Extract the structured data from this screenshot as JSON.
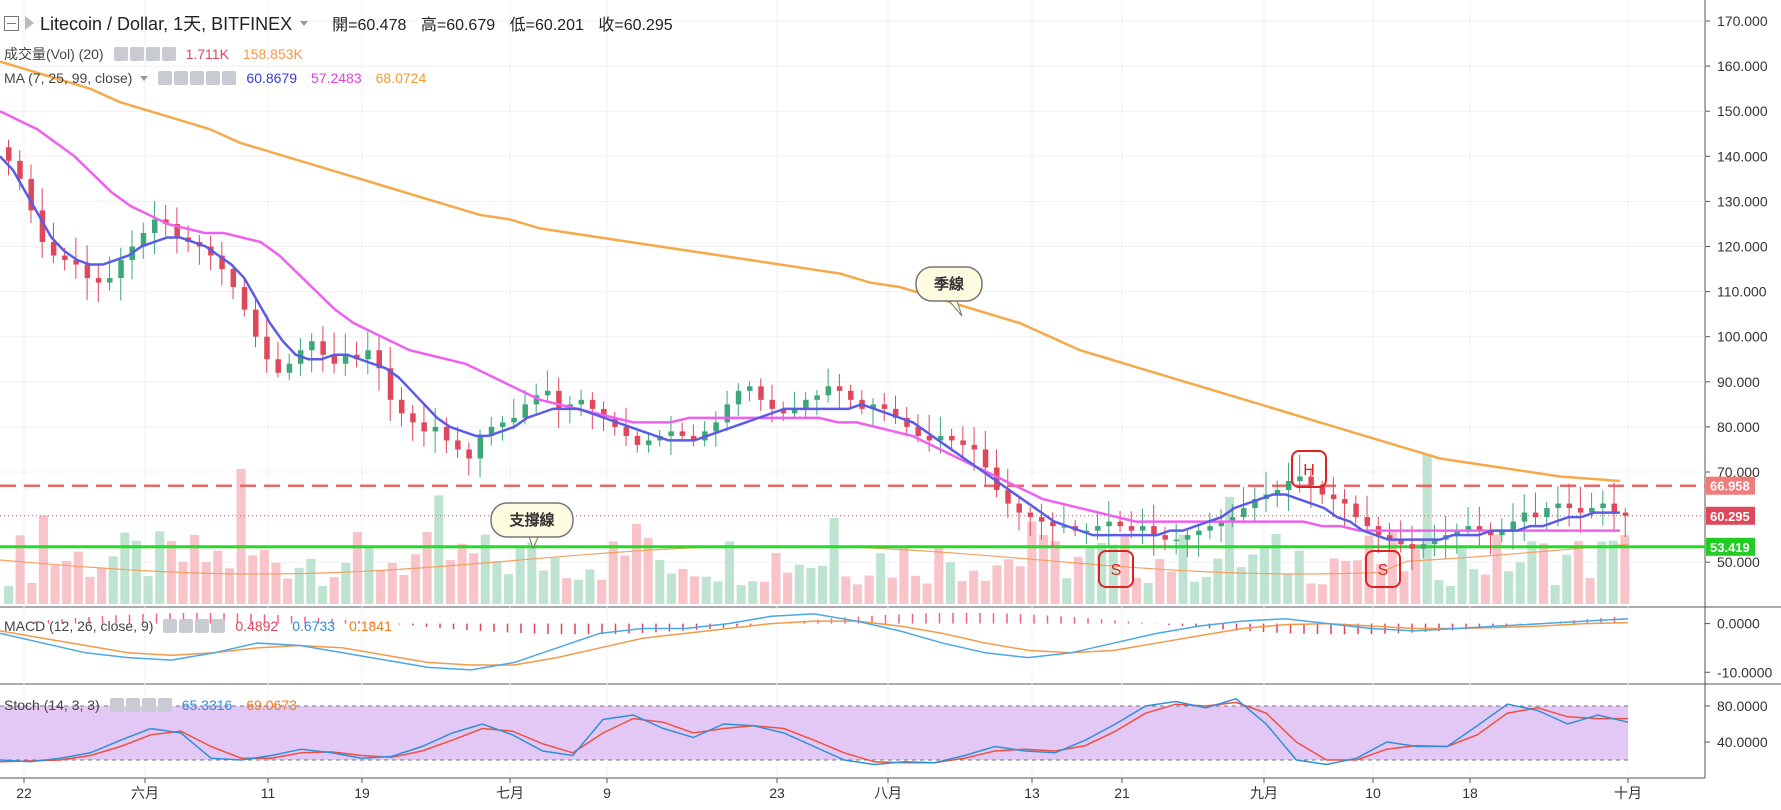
{
  "header": {
    "symbol": "Litecoin / Dollar, 1天, BITFINEX",
    "ohlc": {
      "open": "開=60.478",
      "high": "高=60.679",
      "low": "低=60.201",
      "close": "收=60.295"
    }
  },
  "legends": {
    "volume": {
      "name": "成交量(Vol) (20)",
      "v1": "1.711K",
      "v2": "158.853K"
    },
    "ma": {
      "name": "MA (7, 25, 99, close)",
      "v1": "60.8679",
      "v2": "57.2483",
      "v3": "68.0724"
    },
    "macd": {
      "name": "MACD (12, 26, close, 9)",
      "v1": "0.4892",
      "v2": "0.6733",
      "v3": "0.1841"
    },
    "stoch": {
      "name": "Stoch (14, 3, 3)",
      "v1": "65.3316",
      "v2": "69.0673"
    }
  },
  "price_axis": {
    "ticks": [
      "170.000",
      "160.000",
      "150.000",
      "140.000",
      "130.000",
      "120.000",
      "110.000",
      "100.000",
      "90.000",
      "80.000",
      "70.000",
      "50.000"
    ],
    "tags": {
      "resistance": "66.958",
      "last": "60.295",
      "support": "53.419"
    }
  },
  "macd_axis": {
    "ticks": [
      "0.0000",
      "-10.0000"
    ]
  },
  "stoch_axis": {
    "ticks": [
      "80.0000",
      "40.0000"
    ]
  },
  "time_axis": {
    "labels": [
      "22",
      "六月",
      "11",
      "19",
      "七月",
      "9",
      "23",
      "八月",
      "13",
      "21",
      "九月",
      "10",
      "18",
      "十月"
    ]
  },
  "annotations": {
    "quarter_line": "季線",
    "support_line": "支撐線",
    "head": "H",
    "shoulder_left": "S",
    "shoulder_right": "S"
  },
  "colors": {
    "up": "#3ea77a",
    "down": "#e0475a",
    "ma7": "#5b5ce6",
    "ma25": "#f060f0",
    "ma99": "#f7a94a",
    "support": "#22dd22",
    "resistance": "#ee6666",
    "stoch_fill": "#e3c8f5",
    "macd_line": "#4aa8e8",
    "signal_line": "#f39a4a"
  },
  "chart_data": [
    {
      "type": "candlestick",
      "title": "Litecoin / Dollar, 1天, BITFINEX",
      "ylim": [
        42,
        175
      ],
      "x_labels": [
        "22",
        "六月",
        "11",
        "19",
        "七月",
        "9",
        "23",
        "八月",
        "13",
        "21",
        "九月",
        "10",
        "18",
        "十月"
      ],
      "close_series": [
        139,
        135,
        128,
        121,
        118,
        117,
        116,
        113,
        112,
        113,
        117,
        120,
        123,
        126,
        125,
        122,
        121,
        120,
        118,
        115,
        111,
        106,
        100,
        95,
        92,
        94,
        97,
        99,
        96,
        94,
        96,
        95,
        97,
        93,
        86,
        83,
        81,
        79,
        80,
        77,
        75,
        73,
        78,
        80,
        81,
        82,
        85,
        87,
        88,
        84,
        85,
        86,
        84,
        82,
        80,
        78,
        76,
        77,
        78,
        79,
        78,
        77,
        79,
        81,
        85,
        88,
        89,
        86,
        84,
        83,
        84,
        86,
        87,
        89,
        88,
        86,
        84,
        85,
        84,
        82,
        80,
        78,
        77,
        78,
        77,
        76,
        75,
        71,
        66,
        63,
        61,
        60,
        59,
        58,
        58,
        57,
        57,
        58,
        59,
        58,
        57,
        58,
        56,
        55,
        55,
        56,
        57,
        58,
        59,
        60,
        62,
        64,
        65,
        66,
        68,
        69,
        67,
        65,
        64,
        63,
        60,
        58,
        56,
        55,
        54,
        53,
        54,
        55,
        56,
        57,
        58,
        57,
        56,
        57,
        59,
        61,
        60,
        62,
        63,
        62,
        61,
        62,
        63,
        61,
        60.3
      ],
      "ma7": [
        140,
        137,
        132,
        127,
        122,
        119,
        117,
        116,
        116,
        117,
        118,
        120,
        121,
        122,
        122,
        121,
        120,
        118,
        116,
        113,
        108,
        103,
        99,
        96,
        95,
        95,
        96,
        96,
        95,
        94,
        93,
        91,
        88,
        85,
        82,
        80,
        79,
        78,
        78,
        79,
        80,
        82,
        83,
        84,
        84,
        84,
        83,
        82,
        81,
        80,
        79,
        78,
        77,
        77,
        77,
        78,
        79,
        80,
        81,
        82,
        83,
        84,
        84,
        84,
        84,
        84,
        84,
        85,
        84,
        83,
        82,
        81,
        79,
        77,
        75,
        73,
        71,
        69,
        67,
        65,
        63,
        61,
        59,
        58,
        57,
        56,
        56,
        56,
        56,
        56,
        56,
        57,
        57,
        58,
        59,
        60,
        62,
        63,
        64,
        65,
        65,
        64,
        63,
        62,
        60,
        59,
        57,
        56,
        55,
        55,
        55,
        55,
        55,
        56,
        56,
        56,
        57,
        57,
        57,
        58,
        58,
        59,
        60,
        60,
        61,
        61,
        61
      ],
      "ma25": [
        150,
        148,
        146,
        143,
        140,
        136,
        132,
        129,
        127,
        125,
        124,
        123,
        123,
        122,
        121,
        118,
        114,
        110,
        106,
        103,
        101,
        99,
        97,
        96,
        95,
        94,
        92,
        90,
        88,
        86,
        85,
        84,
        83,
        82,
        81,
        81,
        81,
        82,
        82,
        82,
        82,
        82,
        82,
        82,
        82,
        81,
        81,
        80,
        79,
        78,
        76,
        74,
        72,
        70,
        68,
        66,
        64,
        63,
        62,
        61,
        60,
        59,
        59,
        59,
        59,
        59,
        59,
        59,
        59,
        59,
        59,
        58,
        58,
        57,
        57,
        57,
        57,
        57,
        57,
        57,
        57,
        57,
        57,
        57,
        57,
        57,
        57,
        57
      ],
      "ma99": [
        161,
        159,
        157,
        155,
        152,
        150,
        148,
        146,
        143,
        141,
        139,
        137,
        135,
        133,
        131,
        129,
        127,
        126,
        124,
        123,
        122,
        121,
        120,
        119,
        118,
        117,
        116,
        115,
        114,
        112,
        111,
        109,
        107,
        105,
        103,
        100,
        97,
        95,
        93,
        91,
        89,
        87,
        85,
        83,
        81,
        79,
        77,
        75,
        73,
        72,
        71,
        70,
        69,
        68.5,
        68
      ]
    },
    {
      "type": "line",
      "title": "MACD (12, 26, close, 9)",
      "series": [
        {
          "name": "MACD",
          "values": [
            -2,
            -4,
            -6,
            -7,
            -7.5,
            -6,
            -4,
            -4.5,
            -6,
            -7.5,
            -9,
            -9.5,
            -8,
            -5,
            -2,
            -1,
            -1,
            0,
            1.5,
            2,
            0.5,
            -1.5,
            -4,
            -6,
            -7,
            -6,
            -4,
            -2,
            -0.5,
            0.5,
            1,
            0,
            -1,
            -1.5,
            -1,
            -0.5,
            0,
            0.5,
            1
          ]
        },
        {
          "name": "Signal",
          "values": [
            -1.5,
            -3,
            -4.5,
            -6,
            -6.5,
            -6,
            -5,
            -4.5,
            -5,
            -6.5,
            -8,
            -8.5,
            -8.5,
            -7,
            -5,
            -3,
            -2,
            -1,
            0,
            0.5,
            0.5,
            -0.5,
            -2,
            -4,
            -5.5,
            -6,
            -5.5,
            -4,
            -2.5,
            -1,
            -0.2,
            0,
            -0.5,
            -1,
            -1,
            -0.8,
            -0.5,
            0,
            0.2
          ]
        }
      ],
      "ylim": [
        -12,
        3
      ]
    },
    {
      "type": "line",
      "title": "Stoch (14, 3, 3)",
      "series": [
        {
          "name": "%K",
          "values": [
            20,
            18,
            22,
            28,
            42,
            55,
            50,
            22,
            20,
            25,
            32,
            28,
            22,
            24,
            35,
            50,
            60,
            48,
            30,
            25,
            65,
            70,
            55,
            45,
            60,
            58,
            50,
            35,
            20,
            15,
            18,
            17,
            25,
            35,
            30,
            28,
            42,
            60,
            80,
            85,
            78,
            88,
            60,
            20,
            15,
            22,
            40,
            35,
            35,
            58,
            82,
            75,
            60,
            70,
            62
          ]
        },
        {
          "name": "%D",
          "values": [
            18,
            19,
            20,
            25,
            35,
            48,
            52,
            35,
            22,
            22,
            28,
            29,
            25,
            23,
            30,
            42,
            55,
            52,
            38,
            28,
            50,
            66,
            62,
            50,
            55,
            58,
            55,
            42,
            28,
            18,
            17,
            17,
            22,
            30,
            32,
            30,
            36,
            52,
            72,
            82,
            80,
            84,
            72,
            40,
            20,
            20,
            32,
            36,
            35,
            48,
            72,
            78,
            68,
            66,
            66
          ]
        }
      ],
      "ylim": [
        0,
        100
      ]
    }
  ]
}
